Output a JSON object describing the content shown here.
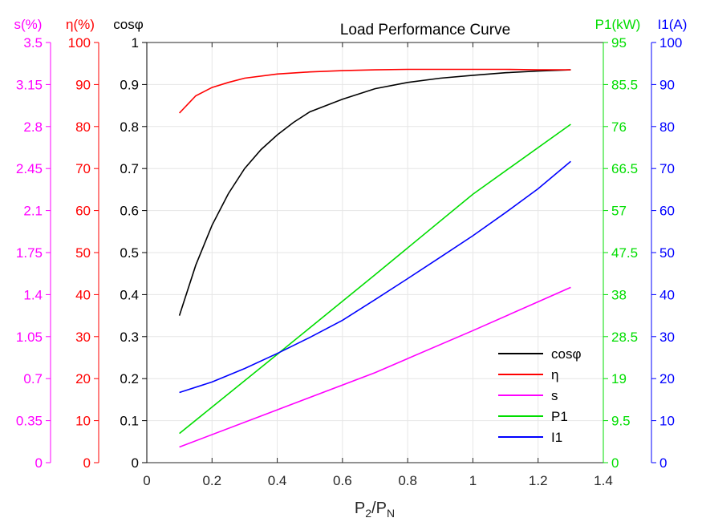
{
  "chart_data": {
    "type": "line",
    "title": "Load Performance Curve",
    "xlabel": "P2/PN",
    "x_ticks": [
      "0",
      "0.2",
      "0.4",
      "0.6",
      "0.8",
      "1",
      "1.2",
      "1.4"
    ],
    "xlim": [
      0,
      1.4
    ],
    "grid": true,
    "legend_placement": "bottom-right",
    "axes": [
      {
        "id": "s",
        "label": "s(%)",
        "side": "left",
        "color": "#ff00ff",
        "lim": [
          0,
          3.5
        ],
        "ticks": [
          "0",
          "0.35",
          "0.7",
          "1.05",
          "1.4",
          "1.75",
          "2.1",
          "2.45",
          "2.8",
          "3.15",
          "3.5"
        ]
      },
      {
        "id": "eta",
        "label": "η(%)",
        "side": "left",
        "color": "#ff0000",
        "lim": [
          0,
          100
        ],
        "ticks": [
          "0",
          "10",
          "20",
          "30",
          "40",
          "50",
          "60",
          "70",
          "80",
          "90",
          "100"
        ]
      },
      {
        "id": "cos",
        "label": "cosφ",
        "side": "left",
        "color": "#000000",
        "lim": [
          0,
          1
        ],
        "ticks": [
          "0",
          "0.1",
          "0.2",
          "0.3",
          "0.4",
          "0.5",
          "0.6",
          "0.7",
          "0.8",
          "0.9",
          "1"
        ]
      },
      {
        "id": "p1",
        "label": "P1(kW)",
        "side": "right",
        "color": "#00dd00",
        "lim": [
          0,
          95
        ],
        "ticks": [
          "0",
          "9.5",
          "19",
          "28.5",
          "38",
          "47.5",
          "57",
          "66.5",
          "76",
          "85.5",
          "95"
        ]
      },
      {
        "id": "i1",
        "label": "I1(A)",
        "side": "right",
        "color": "#0000ff",
        "lim": [
          0,
          100
        ],
        "ticks": [
          "0",
          "10",
          "20",
          "30",
          "40",
          "50",
          "60",
          "70",
          "80",
          "90",
          "100"
        ]
      }
    ],
    "series": [
      {
        "name": "cosφ",
        "axis": "cos",
        "color": "#000000",
        "x": [
          0.1,
          0.15,
          0.2,
          0.25,
          0.3,
          0.35,
          0.4,
          0.45,
          0.5,
          0.6,
          0.7,
          0.8,
          0.9,
          1.0,
          1.1,
          1.2,
          1.3
        ],
        "y": [
          0.35,
          0.47,
          0.565,
          0.64,
          0.7,
          0.745,
          0.78,
          0.81,
          0.835,
          0.865,
          0.89,
          0.905,
          0.915,
          0.922,
          0.928,
          0.932,
          0.935
        ]
      },
      {
        "name": "η",
        "axis": "eta",
        "color": "#ff0000",
        "x": [
          0.1,
          0.15,
          0.2,
          0.25,
          0.3,
          0.4,
          0.5,
          0.6,
          0.7,
          0.8,
          0.9,
          1.0,
          1.1,
          1.2,
          1.3
        ],
        "y": [
          83.2,
          87.3,
          89.3,
          90.5,
          91.5,
          92.5,
          93.0,
          93.3,
          93.5,
          93.6,
          93.6,
          93.6,
          93.6,
          93.5,
          93.5
        ]
      },
      {
        "name": "s",
        "axis": "s",
        "color": "#ff00ff",
        "x": [
          0.1,
          0.4,
          0.7,
          1.0,
          1.3
        ],
        "y": [
          0.13,
          0.44,
          0.75,
          1.1,
          1.46
        ]
      },
      {
        "name": "P1",
        "axis": "p1",
        "color": "#00dd00",
        "x": [
          0.1,
          0.4,
          0.7,
          1.0,
          1.3
        ],
        "y": [
          6.6,
          24.5,
          42.5,
          60.7,
          76.5
        ]
      },
      {
        "name": "I1",
        "axis": "i1",
        "color": "#0000ff",
        "x": [
          0.1,
          0.2,
          0.3,
          0.4,
          0.5,
          0.6,
          0.7,
          0.8,
          0.9,
          1.0,
          1.1,
          1.2,
          1.3
        ],
        "y": [
          16.7,
          19.2,
          22.4,
          26.0,
          29.8,
          33.9,
          38.8,
          43.8,
          48.9,
          54.0,
          59.5,
          65.2,
          71.7
        ]
      }
    ]
  }
}
